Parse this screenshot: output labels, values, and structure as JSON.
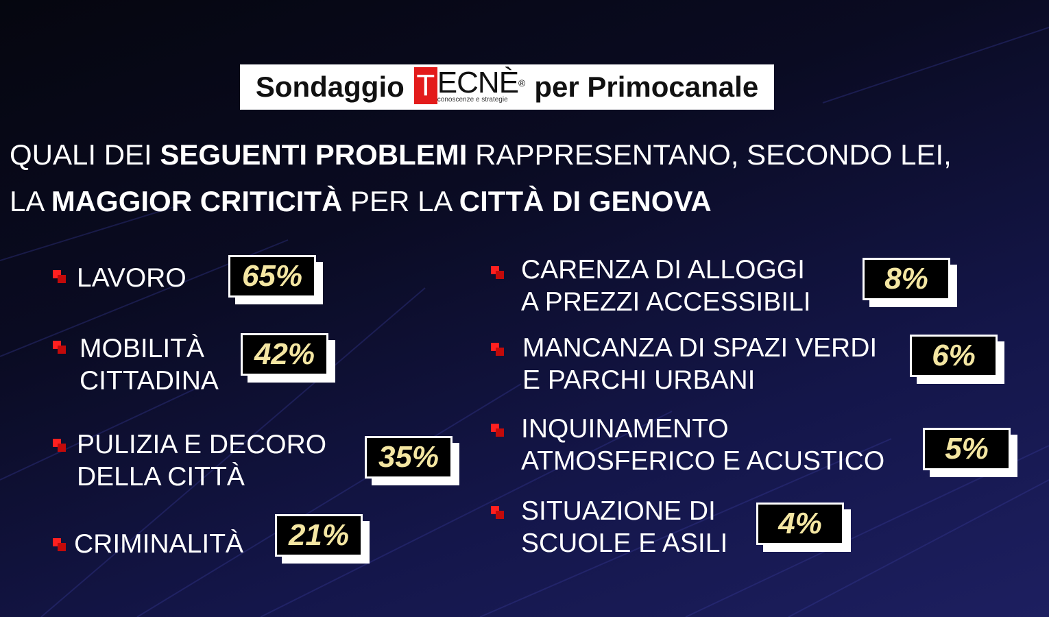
{
  "banner": {
    "prefix": "Sondaggio",
    "logo_letter": "T",
    "logo_rest": "ECNÈ",
    "logo_registered": "®",
    "logo_tagline": "conoscenze e strategie",
    "suffix": "per Primocanale"
  },
  "question": {
    "p1": "QUALI DEI ",
    "b1": "SEGUENTI PROBLEMI",
    "p2": " RAPPRESENTANO, SECONDO LEI,",
    "p3": "LA ",
    "b2": "MAGGIOR CRITICITÀ",
    "p4": " PER LA ",
    "b3": "CITTÀ DI GENOVA"
  },
  "left_items": [
    {
      "line1": "LAVORO",
      "line2": "",
      "value": "65%"
    },
    {
      "line1": "MOBILITÀ",
      "line2": "CITTADINA",
      "value": "42%"
    },
    {
      "line1": "PULIZIA E DECORO",
      "line2": "DELLA CITTÀ",
      "value": "35%"
    },
    {
      "line1": "CRIMINALITÀ",
      "line2": "",
      "value": "21%"
    }
  ],
  "right_items": [
    {
      "line1": "CARENZA DI ALLOGGI",
      "line2": "A PREZZI ACCESSIBILI",
      "value": "8%"
    },
    {
      "line1": "MANCANZA DI SPAZI VERDI",
      "line2": "E PARCHI URBANI",
      "value": "6%"
    },
    {
      "line1": "INQUINAMENTO",
      "line2": "ATMOSFERICO E ACUSTICO",
      "value": "5%"
    },
    {
      "line1": "SITUAZIONE DI",
      "line2": "SCUOLE E ASILI",
      "value": "4%"
    }
  ],
  "colors": {
    "accent": "#e31b1b",
    "percent_text": "#f4e6a2",
    "background": "#0a0b22"
  }
}
